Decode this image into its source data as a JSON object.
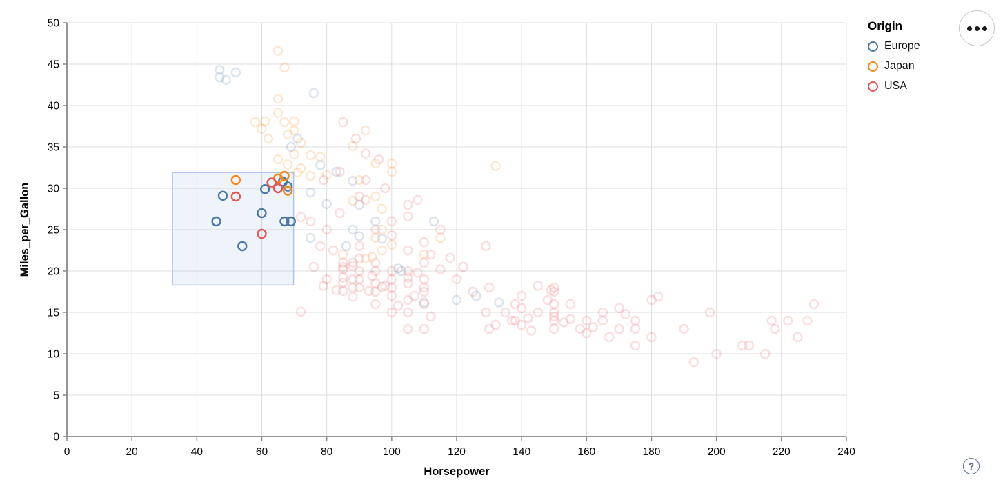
{
  "controls": {
    "menu_button_label": "actions menu",
    "help_label": "?"
  },
  "chart_data": {
    "type": "scatter",
    "title": "",
    "xlabel": "Horsepower",
    "ylabel": "Miles_per_Gallon",
    "xlim": [
      0,
      240
    ],
    "ylim": [
      0,
      50
    ],
    "xticks": [
      0,
      20,
      40,
      60,
      80,
      100,
      120,
      140,
      160,
      180,
      200,
      220,
      240
    ],
    "yticks": [
      0,
      5,
      10,
      15,
      20,
      25,
      30,
      35,
      40,
      45,
      50
    ],
    "grid": true,
    "legend": {
      "title": "Origin",
      "position": "top-right",
      "entries": [
        {
          "label": "Europe",
          "key": "E",
          "color": "#4c78a8"
        },
        {
          "label": "Japan",
          "key": "J",
          "color": "#f58518"
        },
        {
          "label": "USA",
          "key": "U",
          "color": "#e45756"
        }
      ]
    },
    "colors": {
      "E": "#4c78a8",
      "J": "#f58518",
      "U": "#e45756",
      "grid": "#dddddd",
      "axis": "#888888",
      "brush_fill": "#7da7dd",
      "brush_stroke": "#aec4ec"
    },
    "brush": {
      "x": [
        32.5,
        69.8
      ],
      "y": [
        18.3,
        31.9
      ]
    },
    "unselected_opacity": 0.2,
    "points": [
      [
        46,
        26,
        "E"
      ],
      [
        48,
        29.1,
        "E"
      ],
      [
        54,
        23,
        "E"
      ],
      [
        60,
        27,
        "E"
      ],
      [
        61,
        29.9,
        "E"
      ],
      [
        67,
        26,
        "E"
      ],
      [
        69,
        26,
        "E"
      ],
      [
        66.5,
        30.8,
        "E"
      ],
      [
        68,
        30.2,
        "E"
      ],
      [
        52,
        31,
        "J"
      ],
      [
        65,
        31.2,
        "J"
      ],
      [
        67,
        31.5,
        "J"
      ],
      [
        68,
        29.7,
        "J"
      ],
      [
        52,
        29,
        "U"
      ],
      [
        60,
        24.5,
        "U"
      ],
      [
        63,
        30.7,
        "U"
      ],
      [
        65,
        30,
        "U"
      ],
      [
        47,
        44.3,
        "E"
      ],
      [
        47,
        43.4,
        "E"
      ],
      [
        52,
        44,
        "E"
      ],
      [
        49,
        43.1,
        "E"
      ],
      [
        76,
        41.5,
        "E"
      ],
      [
        71,
        36,
        "E"
      ],
      [
        69,
        35,
        "E"
      ],
      [
        78,
        32.8,
        "E"
      ],
      [
        83,
        32,
        "E"
      ],
      [
        88,
        30.9,
        "E"
      ],
      [
        75,
        29.5,
        "E"
      ],
      [
        80,
        28.1,
        "E"
      ],
      [
        90,
        28,
        "E"
      ],
      [
        88,
        25,
        "E"
      ],
      [
        95,
        26,
        "E"
      ],
      [
        113,
        26,
        "E"
      ],
      [
        102,
        20.3,
        "E"
      ],
      [
        103,
        20,
        "E"
      ],
      [
        97,
        23.9,
        "E"
      ],
      [
        90,
        24.2,
        "E"
      ],
      [
        86,
        23,
        "E"
      ],
      [
        110,
        16.2,
        "E"
      ],
      [
        120,
        16.5,
        "E"
      ],
      [
        126,
        17,
        "E"
      ],
      [
        133,
        16.2,
        "E"
      ],
      [
        75,
        24,
        "E"
      ],
      [
        65,
        46.6,
        "J"
      ],
      [
        67,
        44.6,
        "J"
      ],
      [
        65,
        40.8,
        "J"
      ],
      [
        70,
        38.1,
        "J"
      ],
      [
        58,
        38,
        "J"
      ],
      [
        60,
        37.2,
        "J"
      ],
      [
        61,
        38.1,
        "J"
      ],
      [
        65,
        39.1,
        "J"
      ],
      [
        67,
        38,
        "J"
      ],
      [
        70,
        37,
        "J"
      ],
      [
        62,
        36,
        "J"
      ],
      [
        68,
        36.5,
        "J"
      ],
      [
        72,
        35.5,
        "J"
      ],
      [
        70,
        34.1,
        "J"
      ],
      [
        65,
        33.5,
        "J"
      ],
      [
        68,
        32.9,
        "J"
      ],
      [
        75,
        34,
        "J"
      ],
      [
        78,
        33.8,
        "J"
      ],
      [
        72,
        32.4,
        "J"
      ],
      [
        92,
        37,
        "J"
      ],
      [
        88,
        35.1,
        "J"
      ],
      [
        95,
        33,
        "J"
      ],
      [
        100,
        33,
        "J"
      ],
      [
        132,
        32.7,
        "J"
      ],
      [
        90,
        31,
        "J"
      ],
      [
        95,
        29,
        "J"
      ],
      [
        88,
        28.5,
        "J"
      ],
      [
        97,
        27.5,
        "J"
      ],
      [
        100,
        32,
        "J"
      ],
      [
        85,
        22,
        "J"
      ],
      [
        92,
        21.5,
        "J"
      ],
      [
        100,
        23.2,
        "J"
      ],
      [
        110,
        22,
        "J"
      ],
      [
        115,
        24,
        "J"
      ],
      [
        97,
        25,
        "J"
      ],
      [
        75,
        31.5,
        "J"
      ],
      [
        80,
        31.6,
        "J"
      ],
      [
        71,
        31.9,
        "J"
      ],
      [
        95,
        24,
        "J"
      ],
      [
        97,
        22.5,
        "J"
      ],
      [
        94,
        21.7,
        "J"
      ],
      [
        85,
        38,
        "U"
      ],
      [
        89,
        36,
        "U"
      ],
      [
        92,
        34.2,
        "U"
      ],
      [
        96,
        33.5,
        "U"
      ],
      [
        84,
        32,
        "U"
      ],
      [
        92,
        31,
        "U"
      ],
      [
        98,
        30,
        "U"
      ],
      [
        79,
        31,
        "U"
      ],
      [
        72,
        26.5,
        "U"
      ],
      [
        75,
        26,
        "U"
      ],
      [
        80,
        25,
        "U"
      ],
      [
        84,
        27,
        "U"
      ],
      [
        90,
        29,
        "U"
      ],
      [
        92,
        28.6,
        "U"
      ],
      [
        105,
        28,
        "U"
      ],
      [
        108,
        28.6,
        "U"
      ],
      [
        95,
        25,
        "U"
      ],
      [
        100,
        26,
        "U"
      ],
      [
        105,
        26.6,
        "U"
      ],
      [
        110,
        23.5,
        "U"
      ],
      [
        100,
        24.3,
        "U"
      ],
      [
        105,
        22.5,
        "U"
      ],
      [
        112,
        22,
        "U"
      ],
      [
        115,
        25,
        "U"
      ],
      [
        118,
        21.6,
        "U"
      ],
      [
        115,
        20.2,
        "U"
      ],
      [
        122,
        20.5,
        "U"
      ],
      [
        120,
        19,
        "U"
      ],
      [
        125,
        17.5,
        "U"
      ],
      [
        129,
        23,
        "U"
      ],
      [
        85,
        20.2,
        "U"
      ],
      [
        85,
        20.5,
        "U"
      ],
      [
        85,
        18.6,
        "U"
      ],
      [
        85,
        17.6,
        "U"
      ],
      [
        85,
        21,
        "U"
      ],
      [
        85,
        19.2,
        "U"
      ],
      [
        88,
        20.6,
        "U"
      ],
      [
        88,
        18,
        "U"
      ],
      [
        88,
        21,
        "U"
      ],
      [
        88,
        19,
        "U"
      ],
      [
        88,
        16.9,
        "U"
      ],
      [
        90,
        20,
        "U"
      ],
      [
        90,
        19,
        "U"
      ],
      [
        90,
        18,
        "U"
      ],
      [
        90,
        21.5,
        "U"
      ],
      [
        90,
        23,
        "U"
      ],
      [
        95,
        20,
        "U"
      ],
      [
        95,
        18.5,
        "U"
      ],
      [
        95,
        17.5,
        "U"
      ],
      [
        95,
        16,
        "U"
      ],
      [
        95,
        21,
        "U"
      ],
      [
        100,
        18,
        "U"
      ],
      [
        100,
        19,
        "U"
      ],
      [
        100,
        17,
        "U"
      ],
      [
        100,
        20,
        "U"
      ],
      [
        100,
        15,
        "U"
      ],
      [
        105,
        18.5,
        "U"
      ],
      [
        105,
        16.5,
        "U"
      ],
      [
        105,
        20,
        "U"
      ],
      [
        105,
        19.2,
        "U"
      ],
      [
        105,
        15,
        "U"
      ],
      [
        110,
        19,
        "U"
      ],
      [
        110,
        18,
        "U"
      ],
      [
        110,
        17.5,
        "U"
      ],
      [
        110,
        21,
        "U"
      ],
      [
        110,
        16,
        "U"
      ],
      [
        97,
        18.1,
        "U"
      ],
      [
        98,
        18.2,
        "U"
      ],
      [
        102,
        15.8,
        "U"
      ],
      [
        107,
        17,
        "U"
      ],
      [
        94,
        19.4,
        "U"
      ],
      [
        93,
        17.6,
        "U"
      ],
      [
        108,
        19.8,
        "U"
      ],
      [
        78,
        23,
        "U"
      ],
      [
        82,
        22.5,
        "U"
      ],
      [
        80,
        19,
        "U"
      ],
      [
        76,
        20.5,
        "U"
      ],
      [
        83,
        17.7,
        "U"
      ],
      [
        79,
        18.2,
        "U"
      ],
      [
        72,
        15.1,
        "U"
      ],
      [
        130,
        18,
        "U"
      ],
      [
        140,
        17,
        "U"
      ],
      [
        145,
        18.2,
        "U"
      ],
      [
        150,
        18,
        "U"
      ],
      [
        150,
        17.5,
        "U"
      ],
      [
        150,
        16,
        "U"
      ],
      [
        150,
        15,
        "U"
      ],
      [
        150,
        14.5,
        "U"
      ],
      [
        150,
        14,
        "U"
      ],
      [
        150,
        13,
        "U"
      ],
      [
        145,
        15,
        "U"
      ],
      [
        140,
        13.5,
        "U"
      ],
      [
        137,
        14,
        "U"
      ],
      [
        138,
        16,
        "U"
      ],
      [
        142,
        14.3,
        "U"
      ],
      [
        158,
        13,
        "U"
      ],
      [
        160,
        14,
        "U"
      ],
      [
        165,
        15,
        "U"
      ],
      [
        165,
        14,
        "U"
      ],
      [
        170,
        13,
        "U"
      ],
      [
        170,
        15.5,
        "U"
      ],
      [
        175,
        14,
        "U"
      ],
      [
        175,
        13,
        "U"
      ],
      [
        180,
        12,
        "U"
      ],
      [
        180,
        16.5,
        "U"
      ],
      [
        182,
        16.9,
        "U"
      ],
      [
        190,
        13,
        "U"
      ],
      [
        193,
        9,
        "U"
      ],
      [
        198,
        15,
        "U"
      ],
      [
        200,
        10,
        "U"
      ],
      [
        208,
        11,
        "U"
      ],
      [
        210,
        11,
        "U"
      ],
      [
        215,
        10,
        "U"
      ],
      [
        217,
        14,
        "U"
      ],
      [
        218,
        13,
        "U"
      ],
      [
        222,
        14,
        "U"
      ],
      [
        225,
        12,
        "U"
      ],
      [
        228,
        14,
        "U"
      ],
      [
        230,
        16,
        "U"
      ],
      [
        130,
        13,
        "U"
      ],
      [
        132,
        13.5,
        "U"
      ],
      [
        135,
        15,
        "U"
      ],
      [
        140,
        15.5,
        "U"
      ],
      [
        148,
        16.5,
        "U"
      ],
      [
        155,
        14.2,
        "U"
      ],
      [
        160,
        12.5,
        "U"
      ],
      [
        167,
        12,
        "U"
      ],
      [
        175,
        11,
        "U"
      ],
      [
        153,
        13.8,
        "U"
      ],
      [
        143,
        12.8,
        "U"
      ],
      [
        149,
        17.7,
        "U"
      ],
      [
        129,
        15,
        "U"
      ],
      [
        138,
        14,
        "U"
      ],
      [
        155,
        16,
        "U"
      ],
      [
        162,
        13.2,
        "U"
      ],
      [
        172,
        14.8,
        "U"
      ],
      [
        112,
        14.5,
        "U"
      ],
      [
        105,
        13,
        "U"
      ],
      [
        110,
        13,
        "U"
      ]
    ]
  }
}
